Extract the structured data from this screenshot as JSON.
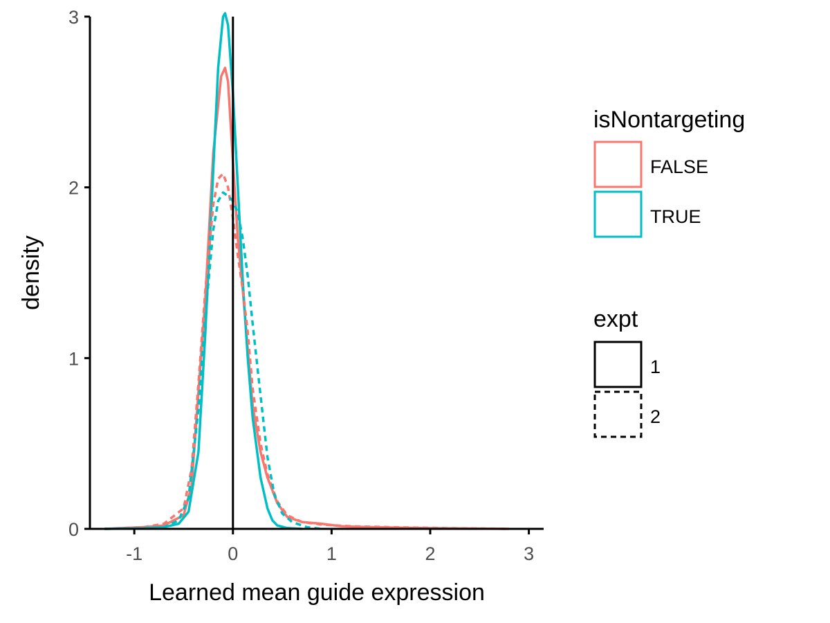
{
  "chart_data": {
    "type": "line",
    "title": "",
    "xlabel": "Learned mean guide expression",
    "ylabel": "density",
    "xlim": [
      -1.45,
      3.15
    ],
    "ylim": [
      0,
      3
    ],
    "x_ticks": [
      "-1",
      "0",
      "1",
      "2",
      "3"
    ],
    "y_ticks": [
      "0",
      "1",
      "2",
      "3"
    ],
    "grid": false,
    "vline_x": 0,
    "legend_position": "right",
    "legends": [
      {
        "title": "isNontargeting",
        "entries": [
          "FALSE",
          "TRUE"
        ],
        "colors": [
          "#F8766D",
          "#00BFC4"
        ]
      },
      {
        "title": "expt",
        "entries": [
          "1",
          "2"
        ],
        "linetypes": [
          "solid",
          "dashed"
        ]
      }
    ],
    "series": [
      {
        "isNontargeting": "FALSE",
        "expt": "1",
        "color": "#F8766D",
        "linetype": "solid",
        "x": [
          -1.3,
          -0.9,
          -0.7,
          -0.5,
          -0.42,
          -0.35,
          -0.28,
          -0.2,
          -0.12,
          -0.08,
          -0.05,
          0.0,
          0.05,
          0.1,
          0.15,
          0.2,
          0.28,
          0.35,
          0.45,
          0.55,
          0.7,
          0.9,
          1.1,
          1.4,
          2.0,
          2.8
        ],
        "y": [
          0.0,
          0.01,
          0.02,
          0.08,
          0.25,
          0.8,
          1.35,
          2.2,
          2.65,
          2.7,
          2.62,
          2.15,
          1.7,
          1.4,
          1.05,
          0.72,
          0.45,
          0.3,
          0.15,
          0.07,
          0.04,
          0.03,
          0.015,
          0.01,
          0.004,
          0.0
        ]
      },
      {
        "isNontargeting": "TRUE",
        "expt": "1",
        "color": "#00BFC4",
        "linetype": "solid",
        "x": [
          -1.3,
          -0.9,
          -0.7,
          -0.55,
          -0.45,
          -0.35,
          -0.28,
          -0.2,
          -0.15,
          -0.1,
          -0.08,
          -0.05,
          0.0,
          0.05,
          0.1,
          0.15,
          0.2,
          0.28,
          0.35,
          0.4,
          0.45,
          0.55,
          0.7
        ],
        "y": [
          0.0,
          0.003,
          0.01,
          0.03,
          0.1,
          0.45,
          1.15,
          2.1,
          2.7,
          3.0,
          3.02,
          2.95,
          2.55,
          2.0,
          1.45,
          1.0,
          0.65,
          0.3,
          0.12,
          0.05,
          0.02,
          0.005,
          0.0
        ]
      },
      {
        "isNontargeting": "FALSE",
        "expt": "2",
        "color": "#F8766D",
        "linetype": "dashed",
        "x": [
          -1.3,
          -0.9,
          -0.7,
          -0.5,
          -0.42,
          -0.35,
          -0.28,
          -0.2,
          -0.15,
          -0.1,
          -0.05,
          0.0,
          0.05,
          0.1,
          0.15,
          0.2,
          0.28,
          0.35,
          0.45,
          0.55,
          0.7,
          0.9,
          1.2,
          1.6,
          2.2,
          2.8
        ],
        "y": [
          0.0,
          0.01,
          0.03,
          0.12,
          0.35,
          0.85,
          1.4,
          1.9,
          2.05,
          2.08,
          2.0,
          1.82,
          1.6,
          1.4,
          1.15,
          0.82,
          0.5,
          0.32,
          0.16,
          0.08,
          0.04,
          0.025,
          0.015,
          0.01,
          0.004,
          0.0
        ]
      },
      {
        "isNontargeting": "TRUE",
        "expt": "2",
        "color": "#00BFC4",
        "linetype": "dashed",
        "x": [
          -1.3,
          -0.9,
          -0.7,
          -0.55,
          -0.45,
          -0.35,
          -0.28,
          -0.2,
          -0.15,
          -0.1,
          -0.05,
          0.0,
          0.05,
          0.1,
          0.15,
          0.2,
          0.28,
          0.35,
          0.42,
          0.5,
          0.6,
          0.75,
          0.9
        ],
        "y": [
          0.0,
          0.005,
          0.01,
          0.05,
          0.18,
          0.7,
          1.25,
          1.75,
          1.92,
          1.97,
          1.95,
          1.92,
          1.85,
          1.7,
          1.48,
          1.2,
          0.78,
          0.42,
          0.2,
          0.09,
          0.04,
          0.01,
          0.0
        ]
      }
    ]
  }
}
